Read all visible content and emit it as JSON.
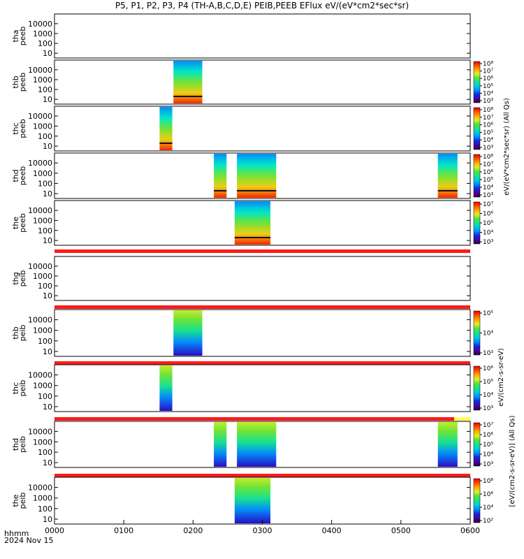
{
  "chart_data": {
    "type": "heatmap",
    "title": "P5, P1, P2, P3, P4 (TH-A,B,C,D,E) PEIB,PEEB EFlux eV/(eV*cm2*sec*sr)",
    "xlabel": "hhmm",
    "date_label": "2024 Nov 15",
    "x_ticks": [
      "0000",
      "0100",
      "0200",
      "0300",
      "0400",
      "0500",
      "0600"
    ],
    "x_range_minutes": [
      0,
      360
    ],
    "y_scale": "log",
    "y_ticks": [
      "10",
      "100",
      "1000",
      "10000"
    ],
    "colormap": "rainbow (black-purple-blue-cyan-green-yellow-orange-red)",
    "panels": [
      {
        "label1": "tha",
        "label2": "peeb",
        "group": "electron",
        "coverage_minutes": [],
        "colorbar_label": "",
        "colorbar_ticks": []
      },
      {
        "label1": "thb",
        "label2": "peeb",
        "group": "electron",
        "coverage_minutes": [
          [
            103,
            128
          ]
        ],
        "colorbar_label": "",
        "colorbar_ticks": [
          "10³",
          "10⁴",
          "10⁵",
          "10⁶",
          "10⁷",
          "10⁸"
        ]
      },
      {
        "label1": "thc",
        "label2": "peeb",
        "group": "electron",
        "coverage_minutes": [
          [
            91,
            102
          ]
        ],
        "colorbar_label": "",
        "colorbar_ticks": [
          "10³",
          "10⁴",
          "10⁵",
          "10⁶",
          "10⁷",
          "10⁸"
        ]
      },
      {
        "label1": "thd",
        "label2": "peeb",
        "group": "electron",
        "coverage_minutes": [
          [
            138,
            149
          ],
          [
            158,
            192
          ],
          [
            332,
            349
          ]
        ],
        "colorbar_label": "",
        "colorbar_ticks": [
          "10³",
          "10⁴",
          "10⁵",
          "10⁶",
          "10⁷",
          "10⁸"
        ]
      },
      {
        "label1": "the",
        "label2": "peeb",
        "group": "electron",
        "coverage_minutes": [
          [
            156,
            187
          ]
        ],
        "colorbar_label": "",
        "colorbar_ticks": [
          "10³",
          "10⁴",
          "10⁵",
          "10⁶",
          "10⁷"
        ]
      },
      {
        "label1": "thg",
        "label2": "peib",
        "group": "ion",
        "coverage_minutes": [],
        "colorbar_label": "",
        "colorbar_ticks": []
      },
      {
        "label1": "thb",
        "label2": "peib",
        "group": "ion",
        "coverage_minutes": [
          [
            103,
            128
          ]
        ],
        "colorbar_label": "",
        "colorbar_ticks": [
          "10³",
          "10⁴",
          "10⁵"
        ]
      },
      {
        "label1": "thc",
        "label2": "peib",
        "group": "ion",
        "coverage_minutes": [
          [
            91,
            102
          ]
        ],
        "colorbar_label": "",
        "colorbar_ticks": [
          "10³",
          "10⁴",
          "10⁵",
          "10⁶"
        ]
      },
      {
        "label1": "thd",
        "label2": "peib",
        "group": "ion",
        "coverage_minutes": [
          [
            138,
            149
          ],
          [
            158,
            192
          ],
          [
            332,
            349
          ]
        ],
        "colorbar_label": "",
        "colorbar_ticks": [
          "10³",
          "10⁴",
          "10⁵",
          "10⁶",
          "10⁷"
        ]
      },
      {
        "label1": "the",
        "label2": "peib",
        "group": "ion",
        "coverage_minutes": [
          [
            156,
            187
          ]
        ],
        "colorbar_label": "",
        "colorbar_ticks": [
          "10²",
          "10⁴",
          "10⁶",
          "10⁸"
        ]
      }
    ],
    "right_side_labels": [
      "eV/(cm2-s-sr-eV)",
      "eV/(eV*cm2*sec*sr) (All Qs)",
      "[eV/(cm2-s-sr-eV)] (All Qs)"
    ],
    "grid": false,
    "legend": "none"
  },
  "colors": {
    "status_bar": "#ff1a1a",
    "status_bar_end": "#ffff55",
    "axis": "#000000"
  }
}
